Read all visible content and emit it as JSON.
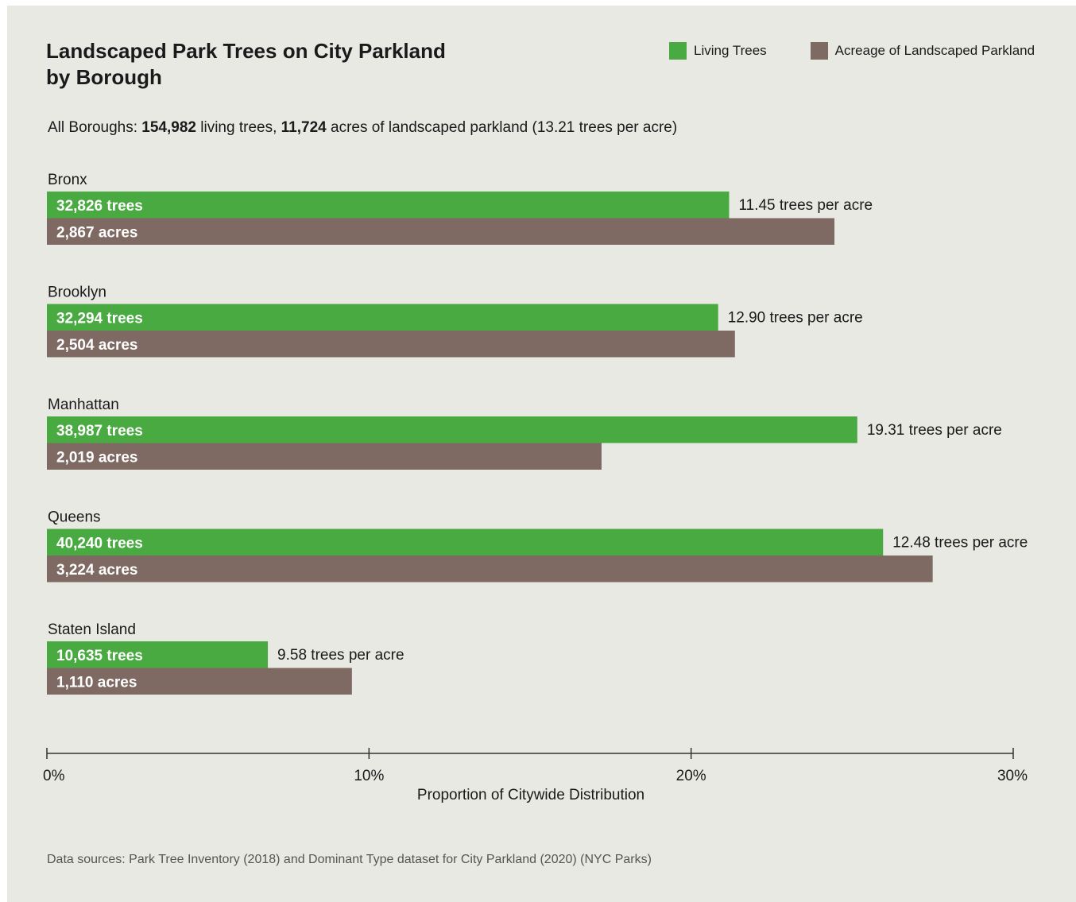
{
  "chart_data": {
    "type": "bar",
    "title_line1": "Landscaped Park Trees on City Parkland",
    "title_line2": "by Borough",
    "legend": [
      {
        "label": "Living Trees",
        "color": "#4aaa42"
      },
      {
        "label": "Acreage of Landscaped Parkland",
        "color": "#7f6a63"
      }
    ],
    "summary": {
      "prefix": "All Boroughs: ",
      "trees": "154,982",
      "mid": " living trees, ",
      "acres": "11,724",
      "suffix": " acres of landscaped parkland (13.21 trees per acre)"
    },
    "categories": [
      "Bronx",
      "Brooklyn",
      "Manhattan",
      "Queens",
      "Staten Island"
    ],
    "series": [
      {
        "name": "Living Trees",
        "color": "#4aaa42",
        "values": [
          21.18,
          20.84,
          25.16,
          25.96,
          6.86
        ],
        "labels": [
          "32,826 trees",
          "32,294 trees",
          "38,987 trees",
          "40,240 trees",
          "10,635 trees"
        ]
      },
      {
        "name": "Acreage of Landscaped Parkland",
        "color": "#7f6a63",
        "values": [
          24.45,
          21.36,
          17.22,
          27.5,
          9.47
        ],
        "labels": [
          "2,867 acres",
          "2,504 acres",
          "2,019 acres",
          "3,224 acres",
          "1,110 acres"
        ]
      }
    ],
    "density_labels": [
      "11.45 trees per acre",
      "12.90 trees per acre",
      "19.31 trees per acre",
      "12.48 trees per acre",
      "9.58 trees per acre"
    ],
    "xlim": [
      0,
      30
    ],
    "xticks": [
      0,
      10,
      20,
      30
    ],
    "xtick_labels": [
      "0%",
      "10%",
      "20%",
      "30%"
    ],
    "xlabel": "Proportion of Citywide Distribution",
    "source": "Data sources: Park Tree Inventory (2018) and Dominant Type dataset for City Parkland  (2020) (NYC Parks)",
    "background": "#e9e9e4"
  }
}
